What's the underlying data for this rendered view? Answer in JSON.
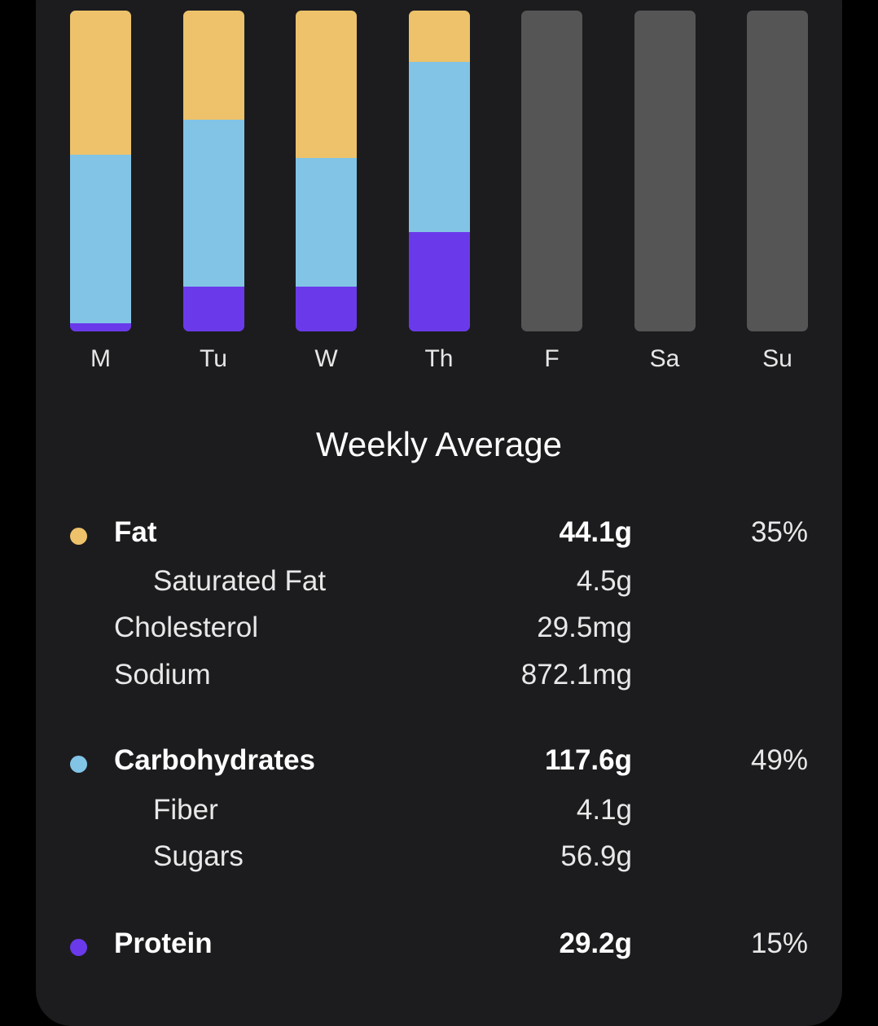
{
  "colors": {
    "fat": "#edc26a",
    "carbohydrates": "#82c4e6",
    "protein": "#6a3aea",
    "empty": "#555555",
    "card": "#1c1c1e"
  },
  "chart_data": {
    "type": "bar",
    "stacked": true,
    "categories": [
      "M",
      "Tu",
      "W",
      "Th",
      "F",
      "Sa",
      "Su"
    ],
    "series": [
      {
        "key": "protein",
        "values": [
          2.5,
          14,
          14,
          31,
          0,
          0,
          0
        ]
      },
      {
        "key": "carbohydrates",
        "values": [
          52.5,
          52,
          40,
          53,
          0,
          0,
          0
        ]
      },
      {
        "key": "fat",
        "values": [
          45,
          34,
          46,
          16,
          0,
          0,
          0
        ]
      }
    ],
    "ylim": [
      0,
      100
    ]
  },
  "summary": {
    "title": "Weekly Average",
    "fat": {
      "label": "Fat",
      "amount": "44.1g",
      "percent": "35%",
      "saturated_label": "Saturated Fat",
      "saturated_amount": "4.5g"
    },
    "cholesterol": {
      "label": "Cholesterol",
      "amount": "29.5mg"
    },
    "sodium": {
      "label": "Sodium",
      "amount": "872.1mg"
    },
    "carbohydrates": {
      "label": "Carbohydrates",
      "amount": "117.6g",
      "percent": "49%",
      "fiber_label": "Fiber",
      "fiber_amount": "4.1g",
      "sugars_label": "Sugars",
      "sugars_amount": "56.9g"
    },
    "protein": {
      "label": "Protein",
      "amount": "29.2g",
      "percent": "15%"
    }
  }
}
